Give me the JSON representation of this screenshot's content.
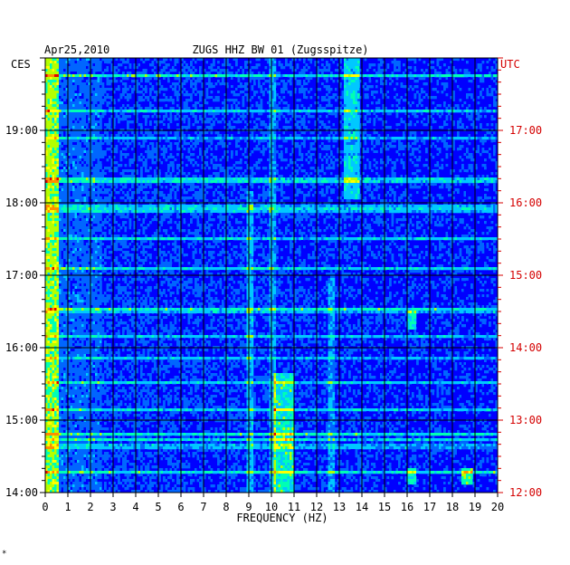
{
  "chart_data": {
    "type": "heatmap",
    "title": "ZUGS HHZ BW 01 (Zugsspitze)",
    "date": "Apr25,2010",
    "xlabel": "FREQUENCY (HZ)",
    "x_ticks": [
      "0",
      "1",
      "2",
      "3",
      "4",
      "5",
      "6",
      "7",
      "8",
      "9",
      "10",
      "11",
      "12",
      "13",
      "14",
      "15",
      "16",
      "17",
      "18",
      "19",
      "20"
    ],
    "xlim": [
      0,
      20
    ],
    "left_axis_label": "CES",
    "right_axis_label": "UTC",
    "left_time_ticks": [
      "19:00",
      "18:00",
      "17:00",
      "16:00",
      "15:00",
      "14:00"
    ],
    "right_time_ticks": [
      "17:00",
      "16:00",
      "15:00",
      "14:00",
      "13:00",
      "12:00"
    ],
    "time_range_ces": [
      "14:00",
      "20:00"
    ],
    "grid": true,
    "colormap": [
      "#00008c",
      "#0000ff",
      "#0066ff",
      "#00c8ff",
      "#00ffb4",
      "#b4ff00",
      "#ffff00",
      "#ff8c00",
      "#e60000"
    ],
    "features": [
      {
        "description": "persistent low-frequency energy",
        "freq_range_hz": [
          0,
          0.6
        ]
      },
      {
        "description": "band near 9 Hz",
        "freq_hz": 9
      },
      {
        "description": "band near 10 Hz, strongest in afternoon",
        "freq_range_hz": [
          10,
          11
        ]
      },
      {
        "description": "band near 12.6 Hz",
        "freq_hz": 12.6
      },
      {
        "description": "band near 13.5 Hz, evening",
        "freq_range_hz": [
          13.2,
          13.8
        ]
      },
      {
        "description": "burst near 16 Hz",
        "freq_hz": 16.1
      },
      {
        "description": "burst near 18.6 Hz",
        "freq_hz": 18.6
      }
    ]
  },
  "footer_mark": "*"
}
